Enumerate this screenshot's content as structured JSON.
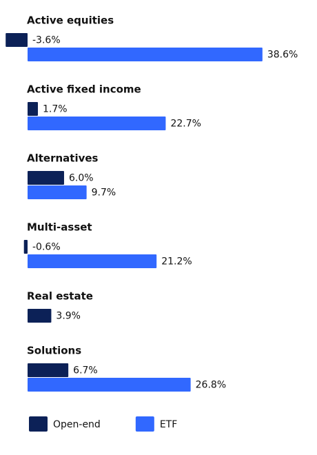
{
  "chart_data": {
    "type": "bar",
    "categories": [
      "Active equities",
      "Active fixed income",
      "Alternatives",
      "Multi-asset",
      "Real estate",
      "Solutions"
    ],
    "series": [
      {
        "name": "Open-end",
        "color": "#0c2157",
        "values": [
          -3.6,
          1.7,
          6.0,
          -0.6,
          3.9,
          6.7
        ],
        "value_labels": [
          "-3.6%",
          "1.7%",
          "6.0%",
          "-0.6%",
          "3.9%",
          "6.7%"
        ]
      },
      {
        "name": "ETF",
        "color": "#3168ff",
        "values": [
          38.6,
          22.7,
          9.7,
          21.2,
          null,
          26.8
        ],
        "value_labels": [
          "38.6%",
          "22.7%",
          "9.7%",
          "21.2%",
          null,
          "26.8%"
        ]
      }
    ]
  }
}
